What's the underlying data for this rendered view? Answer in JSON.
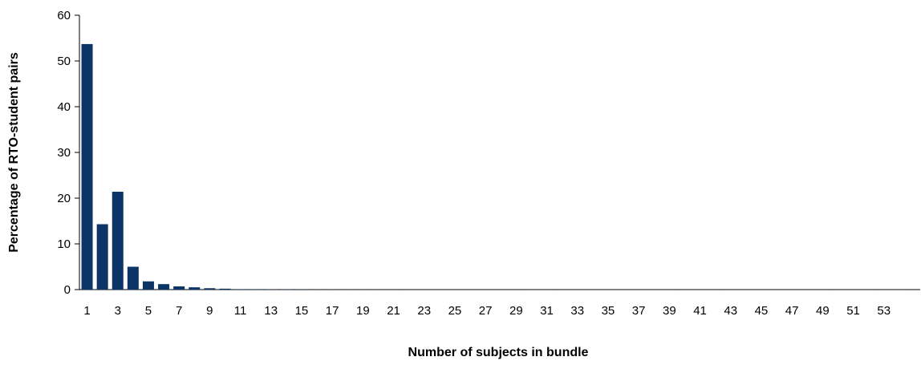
{
  "chart_data": {
    "type": "bar",
    "title": "",
    "xlabel": "Number of subjects in bundle",
    "ylabel": "Percentage of RTO-student pairs",
    "ylim": [
      0,
      60
    ],
    "yticks": [
      0,
      10,
      20,
      30,
      40,
      50,
      60
    ],
    "grid": false,
    "legend": "none",
    "bar_color": "#0a3566",
    "axis_color": "#000000",
    "categories": [
      1,
      2,
      3,
      4,
      5,
      6,
      7,
      8,
      9,
      10,
      11,
      12,
      13,
      14,
      15,
      16,
      17,
      18,
      19,
      20,
      21,
      22,
      23,
      24,
      25,
      26,
      27,
      28,
      29,
      30,
      31,
      32,
      33,
      34,
      35,
      36,
      37,
      38,
      39,
      40,
      41,
      42,
      43,
      44,
      45,
      46,
      47,
      48,
      49,
      50,
      51,
      52,
      53,
      54
    ],
    "tick_labels": [
      1,
      3,
      5,
      7,
      9,
      11,
      13,
      15,
      17,
      19,
      21,
      23,
      25,
      27,
      29,
      31,
      33,
      35,
      37,
      39,
      41,
      43,
      45,
      47,
      49,
      51,
      53
    ],
    "values": [
      53.7,
      14.3,
      21.4,
      5.0,
      1.8,
      1.2,
      0.7,
      0.5,
      0.3,
      0.2,
      0.1,
      0.1,
      0.05,
      0.05,
      0.04,
      0.03,
      0.03,
      0.02,
      0.02,
      0.02,
      0.01,
      0.01,
      0.01,
      0.01,
      0.01,
      0.01,
      0.01,
      0.01,
      0.01,
      0.01,
      0.01,
      0.01,
      0.01,
      0.01,
      0.01,
      0.01,
      0.01,
      0.01,
      0.01,
      0.01,
      0.01,
      0.01,
      0.01,
      0.01,
      0.01,
      0.01,
      0.01,
      0.01,
      0.01,
      0.01,
      0.01,
      0.01,
      0.01,
      0.01
    ]
  }
}
